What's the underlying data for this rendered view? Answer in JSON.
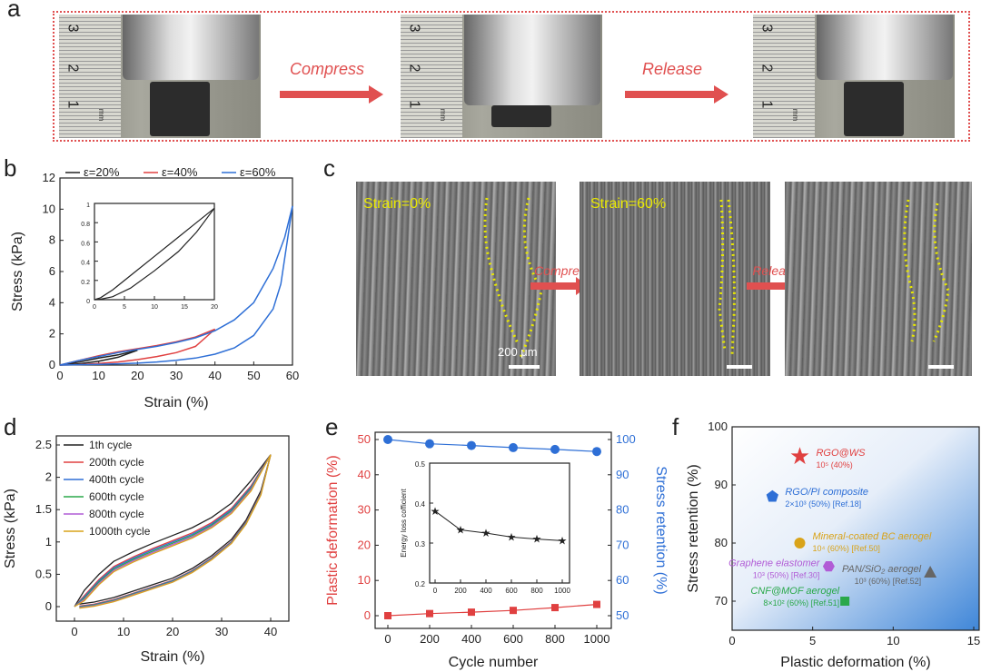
{
  "panels": {
    "a": "a",
    "b": "b",
    "c": "c",
    "d": "d",
    "e": "e",
    "f": "f"
  },
  "panel_a": {
    "arrow1": "Compress",
    "arrow2": "Release",
    "ruler_nums": [
      "3",
      "2",
      "1"
    ],
    "ruler_unit": "mm"
  },
  "panel_c": {
    "labels": [
      "Strain=0%",
      "Strain=60%"
    ],
    "arrow1": "Compress",
    "arrow2": "Release",
    "scale": "200 μm"
  },
  "colors": {
    "black": "#222222",
    "red": "#e04040",
    "blue": "#2e6fd6",
    "green": "#2aa84a",
    "purple": "#b15cd6",
    "orange": "#d9a31a",
    "accent": "#e05050",
    "yellow": "#e8e800"
  },
  "chart_data": [
    {
      "id": "b",
      "type": "line",
      "xlabel": "Strain (%)",
      "ylabel": "Stress (kPa)",
      "xlim": [
        0,
        60
      ],
      "ylim": [
        0,
        12
      ],
      "xticks": [
        0,
        10,
        20,
        30,
        40,
        50,
        60
      ],
      "yticks": [
        0,
        2,
        4,
        6,
        8,
        10,
        12
      ],
      "series": [
        {
          "name": "ε=20%",
          "color": "#222222",
          "loading": [
            [
              0,
              0
            ],
            [
              5,
              0.2
            ],
            [
              10,
              0.45
            ],
            [
              15,
              0.65
            ],
            [
              20,
              0.95
            ]
          ],
          "unloading": [
            [
              20,
              0.95
            ],
            [
              15,
              0.5
            ],
            [
              10,
              0.25
            ],
            [
              5,
              0.08
            ],
            [
              0,
              0
            ]
          ]
        },
        {
          "name": "ε=40%",
          "color": "#e04040",
          "loading": [
            [
              0,
              0
            ],
            [
              5,
              0.3
            ],
            [
              10,
              0.6
            ],
            [
              15,
              0.85
            ],
            [
              20,
              1.05
            ],
            [
              25,
              1.25
            ],
            [
              30,
              1.5
            ],
            [
              35,
              1.8
            ],
            [
              38,
              2.1
            ],
            [
              40,
              2.3
            ]
          ],
          "unloading": [
            [
              40,
              2.3
            ],
            [
              35,
              1.2
            ],
            [
              30,
              0.8
            ],
            [
              25,
              0.55
            ],
            [
              20,
              0.35
            ],
            [
              15,
              0.2
            ],
            [
              10,
              0.1
            ],
            [
              5,
              0.03
            ],
            [
              0,
              0
            ]
          ]
        },
        {
          "name": "ε=60%",
          "color": "#2e6fd6",
          "loading": [
            [
              0,
              0
            ],
            [
              5,
              0.3
            ],
            [
              10,
              0.55
            ],
            [
              15,
              0.8
            ],
            [
              20,
              1.0
            ],
            [
              25,
              1.2
            ],
            [
              30,
              1.45
            ],
            [
              35,
              1.75
            ],
            [
              40,
              2.2
            ],
            [
              45,
              2.9
            ],
            [
              50,
              4.0
            ],
            [
              55,
              6.2
            ],
            [
              58,
              8.2
            ],
            [
              60,
              10.2
            ]
          ],
          "unloading": [
            [
              60,
              10.2
            ],
            [
              57,
              5.2
            ],
            [
              55,
              3.6
            ],
            [
              50,
              1.9
            ],
            [
              45,
              1.1
            ],
            [
              40,
              0.7
            ],
            [
              35,
              0.45
            ],
            [
              30,
              0.3
            ],
            [
              25,
              0.2
            ],
            [
              20,
              0.12
            ],
            [
              10,
              0.04
            ],
            [
              0,
              0
            ]
          ]
        }
      ],
      "inset": {
        "xlim": [
          0,
          20
        ],
        "ylim": [
          0,
          1.0
        ],
        "xticks": [
          0,
          5,
          10,
          15,
          20
        ],
        "yticks": [
          0.0,
          0.2,
          0.4,
          0.6,
          0.8,
          1.0
        ],
        "loading": [
          [
            0,
            0
          ],
          [
            1,
            0.02
          ],
          [
            3,
            0.1
          ],
          [
            6,
            0.25
          ],
          [
            10,
            0.45
          ],
          [
            14,
            0.65
          ],
          [
            17,
            0.8
          ],
          [
            20,
            0.95
          ]
        ],
        "unloading": [
          [
            20,
            0.95
          ],
          [
            17,
            0.7
          ],
          [
            14,
            0.5
          ],
          [
            10,
            0.3
          ],
          [
            6,
            0.12
          ],
          [
            3,
            0.03
          ],
          [
            1,
            0.005
          ],
          [
            0,
            0
          ]
        ]
      }
    },
    {
      "id": "d",
      "type": "line",
      "xlabel": "Strain (%)",
      "ylabel": "Stress (kPa)",
      "xlim": [
        0,
        40
      ],
      "ylim": [
        0,
        2.5
      ],
      "xticks": [
        0,
        10,
        20,
        30,
        40
      ],
      "yticks": [
        0.0,
        0.5,
        1.0,
        1.5,
        2.0,
        2.5
      ],
      "series": [
        {
          "name": "1th cycle",
          "color": "#222222",
          "shift": 0.1
        },
        {
          "name": "200th cycle",
          "color": "#e04040",
          "shift": 0.02
        },
        {
          "name": "400th cycle",
          "color": "#2e6fd6",
          "shift": 0.0
        },
        {
          "name": "600th cycle",
          "color": "#2aa84a",
          "shift": -0.02
        },
        {
          "name": "800th cycle",
          "color": "#b15cd6",
          "shift": -0.04
        },
        {
          "name": "1000th cycle",
          "color": "#d9a31a",
          "shift": -0.06
        }
      ],
      "loading": [
        [
          0,
          0
        ],
        [
          2,
          0.15
        ],
        [
          5,
          0.4
        ],
        [
          8,
          0.6
        ],
        [
          12,
          0.75
        ],
        [
          16,
          0.88
        ],
        [
          20,
          1.0
        ],
        [
          24,
          1.12
        ],
        [
          28,
          1.28
        ],
        [
          32,
          1.5
        ],
        [
          36,
          1.85
        ],
        [
          40,
          2.35
        ]
      ],
      "unloading": [
        [
          40,
          2.35
        ],
        [
          38,
          1.75
        ],
        [
          35,
          1.3
        ],
        [
          32,
          1.0
        ],
        [
          28,
          0.75
        ],
        [
          24,
          0.55
        ],
        [
          20,
          0.4
        ],
        [
          16,
          0.3
        ],
        [
          12,
          0.2
        ],
        [
          8,
          0.1
        ],
        [
          4,
          0.03
        ],
        [
          1,
          0
        ]
      ]
    },
    {
      "id": "e",
      "type": "scatter",
      "xlabel": "Cycle number",
      "ylabel_left": "Plastic deformation (%)",
      "ylabel_right": "Stress retention (%)",
      "xlim": [
        0,
        1000
      ],
      "ylim_left": [
        0,
        50
      ],
      "ylim_right": [
        50,
        100
      ],
      "xticks": [
        0,
        200,
        400,
        600,
        800,
        1000
      ],
      "yticks_left": [
        0,
        10,
        20,
        30,
        40,
        50
      ],
      "yticks_right": [
        50,
        60,
        70,
        80,
        90,
        100
      ],
      "plastic": {
        "x": [
          0,
          200,
          400,
          600,
          800,
          1000
        ],
        "y": [
          0,
          0.6,
          1.0,
          1.5,
          2.3,
          3.2
        ],
        "color": "#e04040"
      },
      "retention": {
        "x": [
          0,
          200,
          400,
          600,
          800,
          1000
        ],
        "y": [
          100,
          98.8,
          98.3,
          97.7,
          97.2,
          96.6
        ],
        "color": "#2e6fd6"
      },
      "inset": {
        "ylabel": "Energy loss cofficient",
        "xlim": [
          0,
          1000
        ],
        "ylim": [
          0.2,
          0.5
        ],
        "xticks": [
          0,
          200,
          400,
          600,
          800,
          1000
        ],
        "yticks": [
          0.2,
          0.3,
          0.4,
          0.5
        ],
        "x": [
          0,
          200,
          400,
          600,
          800,
          1000
        ],
        "y": [
          0.38,
          0.333,
          0.325,
          0.315,
          0.31,
          0.306
        ]
      }
    },
    {
      "id": "f",
      "type": "scatter",
      "xlabel": "Plastic deformation (%)",
      "ylabel": "Stress retention (%)",
      "xlim": [
        0,
        15
      ],
      "ylim": [
        65,
        100
      ],
      "xticks": [
        0,
        5,
        10,
        15
      ],
      "yticks": [
        70,
        80,
        90,
        100
      ],
      "points": [
        {
          "name": "RGO@WS",
          "sub": "10⁵ (40%)",
          "x": 4.2,
          "y": 95,
          "marker": "star",
          "color": "#e04040"
        },
        {
          "name": "RGO/PI composite",
          "sub": "2×10³ (50%) [Ref.18]",
          "x": 2.5,
          "y": 88,
          "marker": "pentagon",
          "color": "#2e6fd6"
        },
        {
          "name": "Mineral-coated BC aerogel",
          "sub": "10⁴ (60%) [Ref.50]",
          "x": 4.2,
          "y": 80,
          "marker": "circle",
          "color": "#d9a31a"
        },
        {
          "name": "Graphene elastomer",
          "sub": "10³ (50%) [Ref.30]",
          "x": 6,
          "y": 76,
          "marker": "hexagon",
          "color": "#b15cd6"
        },
        {
          "name": "PAN/SiO₂ aerogel",
          "sub": "10³ (60%) [Ref.52]",
          "x": 12.3,
          "y": 75,
          "marker": "triangle",
          "color": "#666666"
        },
        {
          "name": "CNF@MOF aerogel",
          "sub": "8×10² (60%) [Ref.51]",
          "x": 7,
          "y": 70,
          "marker": "square",
          "color": "#2aa84a"
        }
      ]
    }
  ]
}
